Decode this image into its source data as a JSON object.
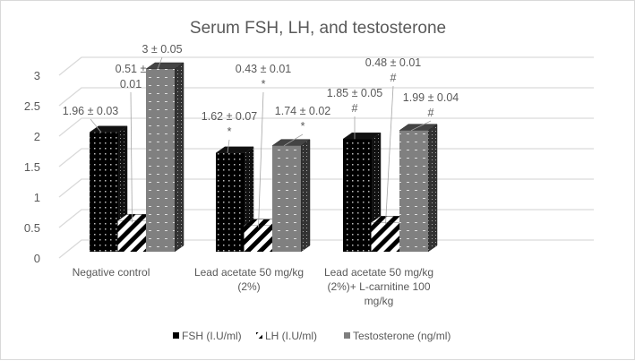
{
  "chart_data": {
    "type": "bar",
    "title": "Serum FSH, LH, and testosterone",
    "xlabel": "",
    "ylabel": "",
    "ylim": [
      0,
      3
    ],
    "yticks": [
      "0",
      "0.5",
      "1",
      "1.5",
      "2",
      "2.5",
      "3"
    ],
    "grid": true,
    "legend_position": "bottom",
    "categories": [
      [
        "Negative control"
      ],
      [
        "Lead acetate 50 mg/kg",
        "(2%)"
      ],
      [
        "Lead acetate 50 mg/kg",
        "(2%)+ L-carnitine 100",
        "mg/kg"
      ]
    ],
    "series": [
      {
        "name": "FSH (I.U/ml)",
        "values": [
          1.96,
          1.62,
          1.85
        ],
        "color": "#000000",
        "labels": [
          [
            "1.96 ± 0.03"
          ],
          [
            "1.62 ± 0.07",
            "*"
          ],
          [
            "1.85 ± 0.05",
            "#"
          ]
        ]
      },
      {
        "name": "LH (I.U/ml)",
        "values": [
          0.51,
          0.43,
          0.48
        ],
        "color": "#ffffff",
        "labels": [
          [
            "0.51 ±",
            "0.01"
          ],
          [
            "0.43 ± 0.01",
            "*"
          ],
          [
            "0.48 ± 0.01",
            "#"
          ]
        ]
      },
      {
        "name": "Testosterone (ng/ml)",
        "values": [
          3.0,
          1.74,
          1.99
        ],
        "color": "#7f7f7f",
        "labels": [
          [
            "3 ± 0.05"
          ],
          [
            "1.74 ± 0.02",
            "*"
          ],
          [
            "1.99 ± 0.04",
            "#"
          ]
        ]
      }
    ]
  }
}
